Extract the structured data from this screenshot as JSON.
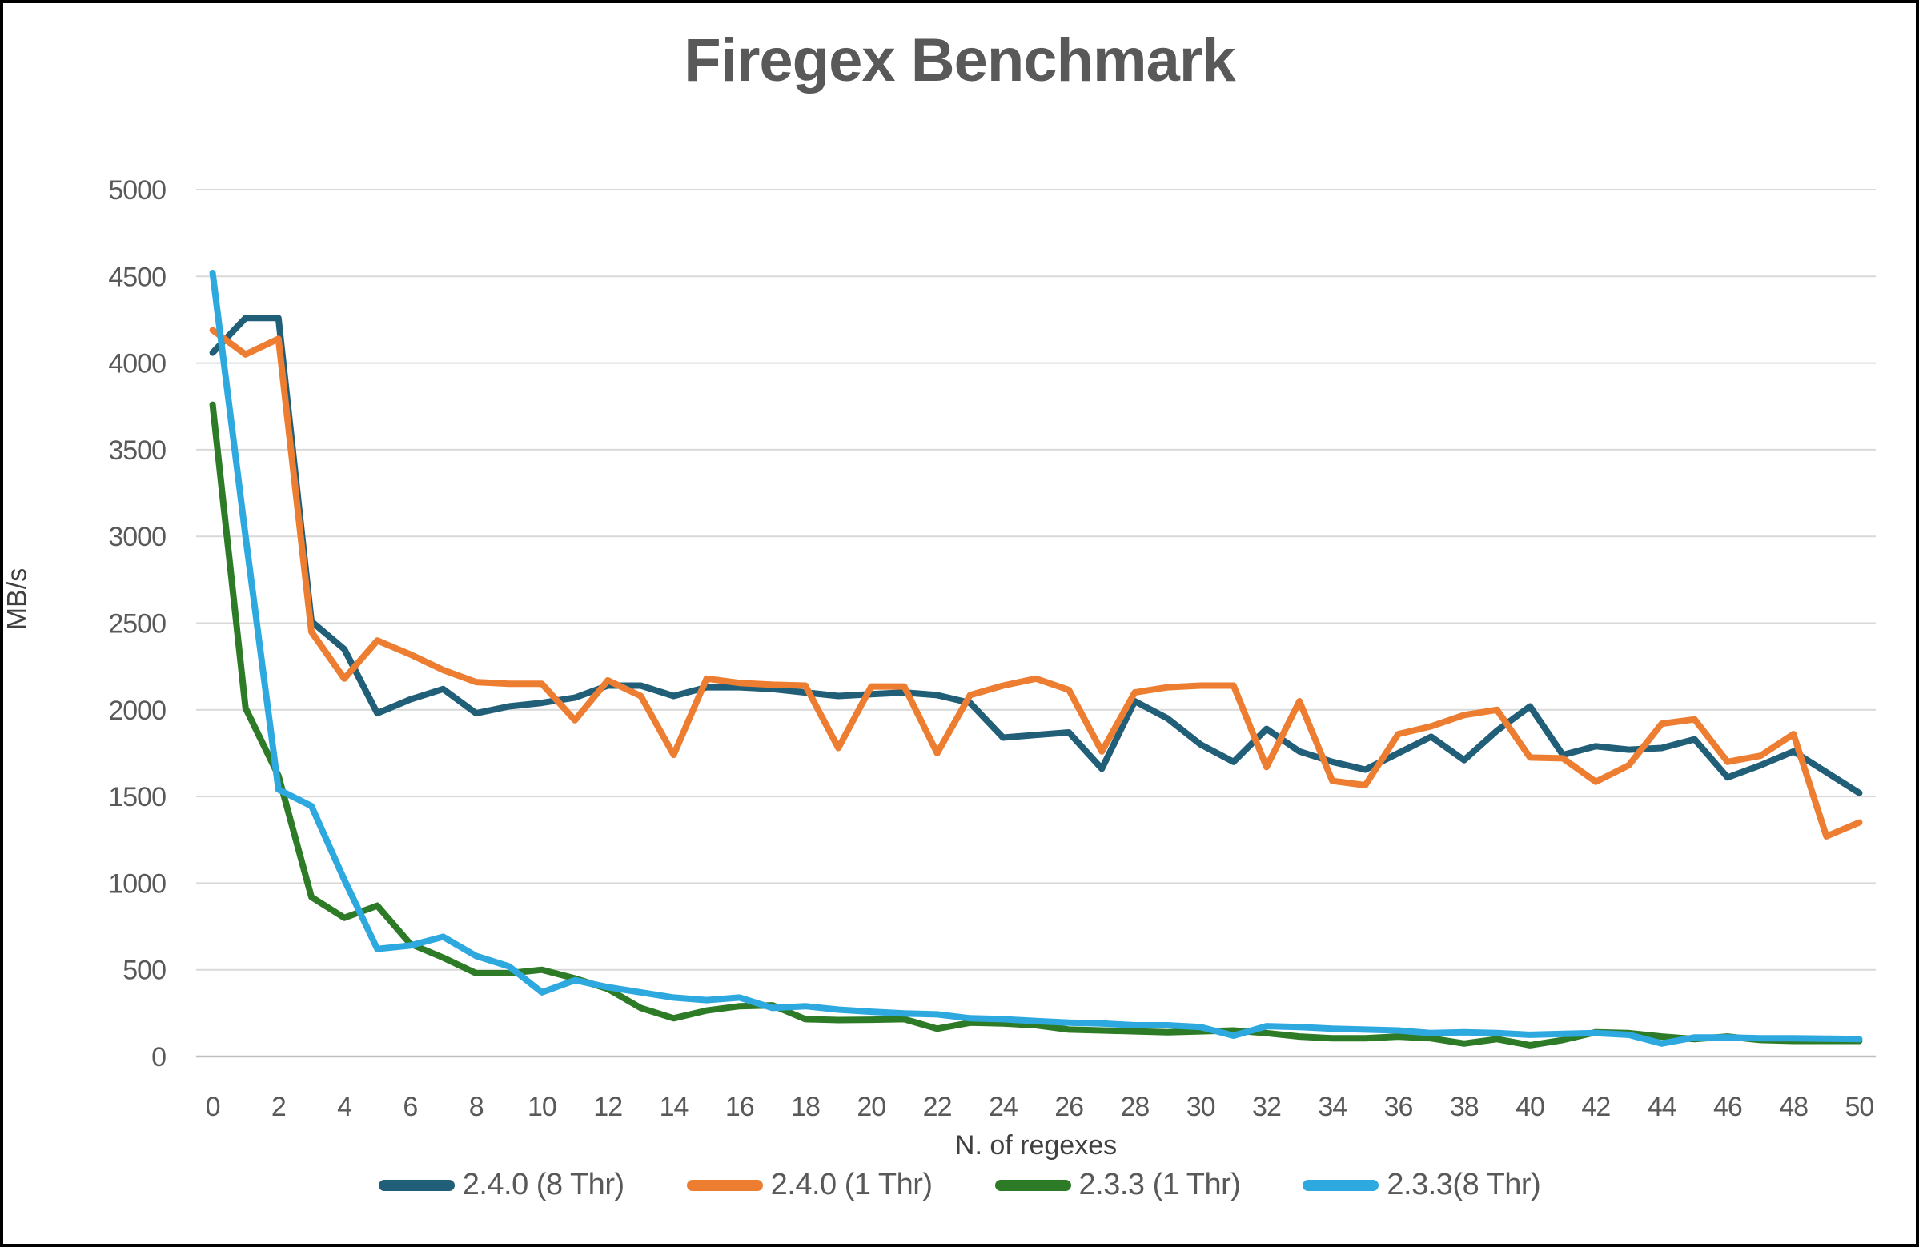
{
  "chart_data": {
    "type": "line",
    "title": "Firegex Benchmark",
    "xlabel": "N. of regexes",
    "ylabel": "MB/s",
    "ylim": [
      0,
      5000
    ],
    "y_ticks": [
      0,
      500,
      1000,
      1500,
      2000,
      2500,
      3000,
      3500,
      4000,
      4500,
      5000
    ],
    "x_ticks": [
      0,
      2,
      4,
      6,
      8,
      10,
      12,
      14,
      16,
      18,
      20,
      22,
      24,
      26,
      28,
      30,
      32,
      34,
      36,
      38,
      40,
      42,
      44,
      46,
      48,
      50
    ],
    "grid": true,
    "legend_position": "bottom",
    "x": [
      0,
      1,
      2,
      3,
      4,
      5,
      6,
      7,
      8,
      9,
      10,
      11,
      12,
      13,
      14,
      15,
      16,
      17,
      18,
      19,
      20,
      21,
      22,
      23,
      24,
      25,
      26,
      27,
      28,
      29,
      30,
      31,
      32,
      33,
      34,
      35,
      36,
      37,
      38,
      39,
      40,
      41,
      42,
      43,
      44,
      45,
      46,
      47,
      48,
      49,
      50
    ],
    "series": [
      {
        "name": "2.4.0 (8 Thr)",
        "color": "#215F78",
        "values": [
          4060,
          4260,
          4260,
          2510,
          2350,
          1980,
          2060,
          2120,
          1980,
          2020,
          2040,
          2070,
          2140,
          2140,
          2080,
          2130,
          2130,
          2120,
          2100,
          2080,
          2090,
          2100,
          2085,
          2040,
          1840,
          1855,
          1870,
          1660,
          2050,
          1950,
          1800,
          1700,
          1890,
          1760,
          1700,
          1655,
          1750,
          1845,
          1710,
          1880,
          2020,
          1740,
          1790,
          1770,
          1780,
          1830,
          1610,
          1680,
          1760,
          1640,
          1520
        ]
      },
      {
        "name": "2.4.0 (1 Thr)",
        "color": "#ED7D31",
        "values": [
          4190,
          4050,
          4140,
          2450,
          2180,
          2400,
          2320,
          2230,
          2160,
          2150,
          2150,
          1940,
          2170,
          2080,
          1740,
          2180,
          2155,
          2145,
          2140,
          1780,
          2135,
          2135,
          1750,
          2085,
          2140,
          2180,
          2115,
          1760,
          2100,
          2130,
          2140,
          2140,
          1670,
          2050,
          1590,
          1565,
          1860,
          1905,
          1970,
          2000,
          1725,
          1720,
          1585,
          1680,
          1920,
          1945,
          1700,
          1735,
          1860,
          1270,
          1350
        ]
      },
      {
        "name": "2.3.3 (1 Thr)",
        "color": "#2E7B27",
        "values": [
          3760,
          2010,
          1620,
          920,
          800,
          870,
          650,
          570,
          480,
          480,
          500,
          450,
          390,
          280,
          220,
          265,
          290,
          295,
          215,
          210,
          212,
          215,
          160,
          195,
          190,
          180,
          155,
          150,
          145,
          140,
          145,
          150,
          135,
          115,
          105,
          105,
          115,
          105,
          75,
          100,
          65,
          95,
          140,
          135,
          115,
          100,
          115,
          95,
          90,
          90,
          90
        ]
      },
      {
        "name": "2.3.3(8 Thr)",
        "color": "#2EA9E0",
        "values": [
          4520,
          3000,
          1540,
          1445,
          1020,
          620,
          640,
          690,
          580,
          520,
          370,
          440,
          400,
          370,
          340,
          325,
          340,
          280,
          290,
          270,
          258,
          248,
          243,
          220,
          215,
          204,
          195,
          190,
          180,
          180,
          170,
          120,
          175,
          170,
          160,
          155,
          150,
          135,
          140,
          135,
          125,
          130,
          135,
          125,
          75,
          110,
          110,
          105,
          105,
          103,
          100
        ]
      }
    ],
    "gridline_color": "#D9D9D9",
    "axis_line_color": "#BFBFBF",
    "tick_label_color": "#595959",
    "title_color": "#595959"
  }
}
